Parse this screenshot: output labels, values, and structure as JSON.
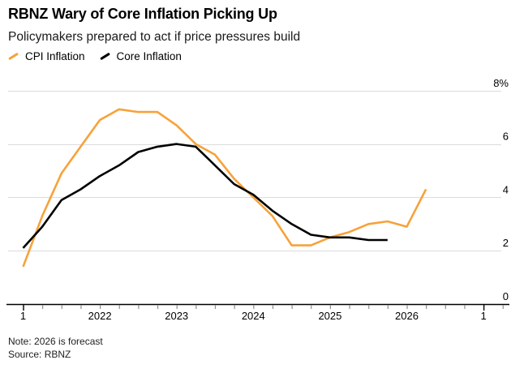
{
  "header": {
    "title": "RBNZ Wary of Core Inflation Picking Up",
    "subtitle": "Policymakers prepared to act if price pressures build"
  },
  "legend": [
    {
      "label": "CPI Inflation",
      "color": "#F7A23A"
    },
    {
      "label": "Core Inflation",
      "color": "#000000"
    }
  ],
  "footer": {
    "note": "Note: 2026 is forecast",
    "source": "Source: RBNZ"
  },
  "colors": {
    "accent_orange": "#F7A23A",
    "line_black": "#000000",
    "gridline": "#dbdbdb",
    "minor_tick": "#8f8f8f",
    "axis": "#000000"
  },
  "chart_data": {
    "type": "line",
    "title": "RBNZ Wary of Core Inflation Picking Up",
    "subtitle": "Policymakers prepared to act if price pressures build",
    "xlabel": "",
    "ylabel": "%",
    "grid": "horizontal",
    "legend_position": "top-left",
    "x_unit": "quarter",
    "x_start": 2021.0,
    "x_step": 0.25,
    "ylim": [
      0,
      8
    ],
    "yticks": [
      {
        "v": 8,
        "label": "8%"
      },
      {
        "v": 6,
        "label": "6"
      },
      {
        "v": 4,
        "label": "4"
      },
      {
        "v": 2,
        "label": "2"
      },
      {
        "v": 0,
        "label": "0"
      }
    ],
    "xticks": [
      {
        "t": 2021,
        "label": "1",
        "end": true
      },
      {
        "t": 2022,
        "label": "2022"
      },
      {
        "t": 2023,
        "label": "2023"
      },
      {
        "t": 2024,
        "label": "2024"
      },
      {
        "t": 2025,
        "label": "2025"
      },
      {
        "t": 2026,
        "label": "2026"
      },
      {
        "t": 2027,
        "label": "1",
        "end": true
      }
    ],
    "minor_tick_step": 0.25,
    "series": [
      {
        "name": "CPI Inflation",
        "color": "#F7A23A",
        "width": 2.6,
        "values": [
          1.4,
          3.3,
          4.9,
          5.9,
          6.9,
          7.3,
          7.2,
          7.2,
          6.7,
          6.0,
          5.6,
          4.7,
          4.0,
          3.3,
          2.2,
          2.2,
          2.5,
          2.7,
          3.0,
          3.1,
          2.9,
          4.3
        ]
      },
      {
        "name": "Core Inflation",
        "color": "#000000",
        "width": 2.6,
        "values": [
          2.1,
          2.9,
          3.9,
          4.3,
          4.8,
          5.2,
          5.7,
          5.9,
          6.0,
          5.9,
          5.2,
          4.5,
          4.1,
          3.5,
          3.0,
          2.6,
          2.5,
          2.5,
          2.4,
          2.4
        ]
      }
    ]
  }
}
